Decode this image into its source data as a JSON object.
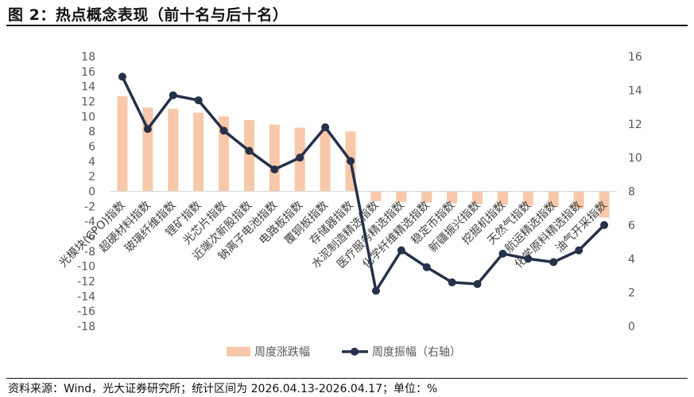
{
  "header": {
    "title": "图 2：热点概念表现（前十名与后十名）"
  },
  "footer": {
    "source": "资料来源：Wind，光大证券研究所；统计区间为 2026.04.13-2026.04.17；单位：%"
  },
  "colors": {
    "bar": "#F7C8A9",
    "line": "#26314A"
  },
  "chart_data": {
    "type": "bar",
    "categories": [
      "光模块(CPO)指数",
      "超硬材料指数",
      "玻璃纤维指数",
      "锂矿指数",
      "光芯片指数",
      "近端次新股指数",
      "钠离子电池指数",
      "电路板指数",
      "覆铜板指数",
      "存储器指数",
      "水泥制造精选指数",
      "医疗服务精选指数",
      "化学纤维精选指数",
      "稳定币指数",
      "新疆振兴指数",
      "挖掘机指数",
      "天然气指数",
      "航运精选指数",
      "化学原料精选指数",
      "油气开采指数"
    ],
    "series": [
      {
        "name": "周度涨跌幅",
        "type": "bar",
        "axis": "left",
        "values": [
          12.7,
          11.2,
          11.0,
          10.5,
          10.0,
          9.5,
          8.9,
          8.5,
          8.2,
          8.0,
          -1.3,
          -1.4,
          -1.5,
          -1.6,
          -1.7,
          -1.8,
          -1.9,
          -2.1,
          -2.3,
          -3.5
        ]
      },
      {
        "name": "周度振幅（右轴）",
        "type": "line",
        "axis": "right",
        "values": [
          14.8,
          11.7,
          13.7,
          13.4,
          11.6,
          10.4,
          9.3,
          10.0,
          11.8,
          9.8,
          2.1,
          4.5,
          3.5,
          2.6,
          2.5,
          4.3,
          4.0,
          3.8,
          4.5,
          6.0
        ]
      }
    ],
    "y_left": {
      "min": -18,
      "max": 18,
      "step": 2
    },
    "y_right": {
      "min": 0,
      "max": 16,
      "step": 2
    },
    "legend_position": "bottom",
    "grid": false
  }
}
